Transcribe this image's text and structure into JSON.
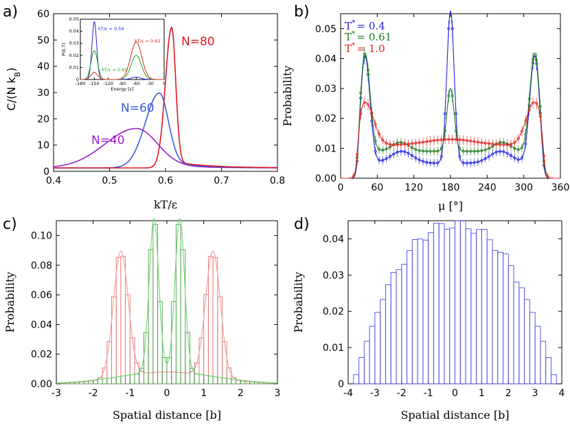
{
  "chart_data": [
    {
      "id": "a",
      "panel_label": "a)",
      "type": "line",
      "xlabel": "kT/ε",
      "ylabel": "C/(N k_B)",
      "ylabel_main": "C/(N k",
      "ylabel_sub": "B",
      "ylabel_end": ")",
      "xlim": [
        0.4,
        0.8
      ],
      "ylim": [
        0,
        60
      ],
      "xticks": [
        "0.4",
        "0.5",
        "0.6",
        "0.7",
        "0.8"
      ],
      "yticks": [
        "0",
        "10",
        "20",
        "30",
        "40",
        "50",
        "60"
      ],
      "series": [
        {
          "name": "N=40",
          "color": "#9a1fc8",
          "peak": 0.548,
          "height": 15,
          "width": 0.045
        },
        {
          "name": "N=60",
          "color": "#3a5bd9",
          "peak": 0.589,
          "height": 28.5,
          "width": 0.02
        },
        {
          "name": "N=80",
          "color": "#e0141e",
          "peak": 0.611,
          "height": 53.5,
          "width": 0.009
        }
      ],
      "inset": {
        "type": "line",
        "xlabel": "Energy [ε]",
        "ylabel": "P(E,T)",
        "xlim": [
          -180,
          0
        ],
        "ylim": [
          0,
          0.05
        ],
        "xticks": [
          "-180",
          "-150",
          "-120",
          "-90",
          "-60",
          "-30",
          "0"
        ],
        "yticks": [
          "0",
          "0.01",
          "0.02",
          "0.03",
          "0.04",
          "0.05"
        ],
        "series": [
          {
            "name": "kT/ε = 0.59",
            "color": "#2020e0",
            "peaks": [
              [
                -150,
                0.048,
                5
              ],
              [
                -60,
                0.002,
                10
              ]
            ]
          },
          {
            "name": "kT/ε = 0.61",
            "color": "#20a020",
            "peaks": [
              [
                -150,
                0.024,
                7
              ],
              [
                -60,
                0.02,
                11
              ]
            ]
          },
          {
            "name": "kT/ε = 0.62",
            "color": "#e02020",
            "peaks": [
              [
                -150,
                0.006,
                7
              ],
              [
                -60,
                0.031,
                12
              ]
            ]
          }
        ]
      }
    },
    {
      "id": "b",
      "panel_label": "b)",
      "type": "line",
      "xlabel": "μ [°]",
      "ylabel": "Probability",
      "xlim": [
        0,
        360
      ],
      "ylim": [
        0,
        0.055
      ],
      "xticks": [
        "0",
        "60",
        "120",
        "180",
        "240",
        "300",
        "360"
      ],
      "yticks": [
        "0.00",
        "0.01",
        "0.02",
        "0.03",
        "0.04",
        "0.05"
      ],
      "series": [
        {
          "name": "T* = 0.4",
          "label": "T",
          "sup": "*",
          "value": "= 0.4",
          "color": "#2020e0"
        },
        {
          "name": "T* = 0.61",
          "label": "T",
          "sup": "*",
          "value": "= 0.61",
          "color": "#1a7a1a"
        },
        {
          "name": "T* = 1.0",
          "label": "T",
          "sup": "*",
          "value": "= 1.0",
          "color": "#e02020"
        }
      ]
    },
    {
      "id": "c",
      "panel_label": "c)",
      "type": "bar",
      "xlabel": "Spatial distance [b]",
      "ylabel": "Probability",
      "xlim": [
        -3,
        3
      ],
      "ylim": [
        0,
        0.11
      ],
      "xticks": [
        "-3",
        "-2",
        "-1",
        "0",
        "1",
        "2",
        "3"
      ],
      "yticks": [
        "0.00",
        "0.02",
        "0.04",
        "0.06",
        "0.08",
        "0.10"
      ],
      "series": [
        {
          "name": "red histogram",
          "color": "#e87070",
          "peaks": [
            -1.25,
            1.25
          ],
          "height": 0.085
        },
        {
          "name": "green histogram",
          "color": "#4a9a4a",
          "peaks": [
            -0.35,
            0.35
          ],
          "height": 0.104
        }
      ]
    },
    {
      "id": "d",
      "panel_label": "d)",
      "type": "bar",
      "xlabel": "Spatial distance [b]",
      "ylabel": "Probability",
      "xlim": [
        -4,
        4
      ],
      "ylim": [
        0,
        0.045
      ],
      "xticks": [
        "-4",
        "-3",
        "-2",
        "-1",
        "0",
        "1",
        "2",
        "3",
        "4"
      ],
      "yticks": [
        "0",
        "0.01",
        "0.02",
        "0.03",
        "0.04"
      ],
      "series": [
        {
          "name": "blue histogram",
          "color": "#4848e0",
          "center": 0,
          "height": 0.044,
          "sigma": 1.45
        }
      ]
    }
  ]
}
